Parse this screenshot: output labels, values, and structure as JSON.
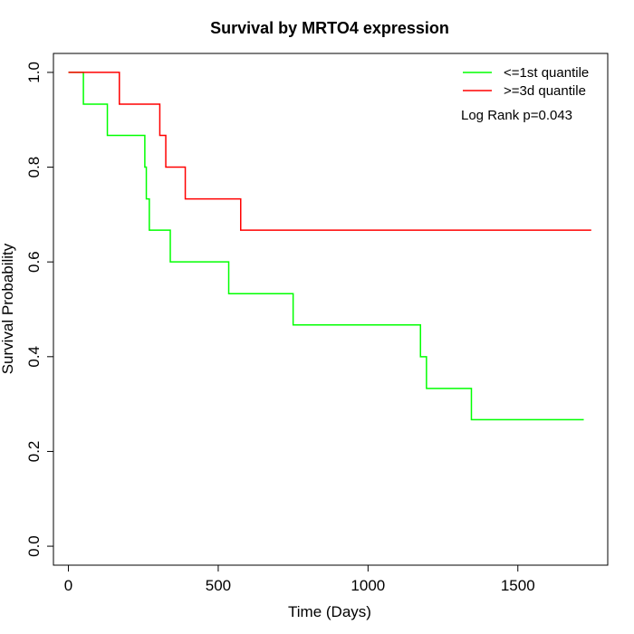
{
  "chart_data": {
    "type": "line",
    "title": "Survival by MRTO4 expression",
    "xlabel": "Time (Days)",
    "ylabel": "Survival Probability",
    "xlim": [
      -50,
      1800
    ],
    "ylim": [
      -0.04,
      1.04
    ],
    "xticks": [
      0,
      500,
      1000,
      1500
    ],
    "yticks": [
      0.0,
      0.2,
      0.4,
      0.6,
      0.8,
      1.0
    ],
    "xtick_labels": [
      "0",
      "500",
      "1000",
      "1500"
    ],
    "ytick_labels": [
      "0.0",
      "0.2",
      "0.4",
      "0.6",
      "0.8",
      "1.0"
    ],
    "grid": false,
    "legend_position": "top-right",
    "annotation": "Log Rank p=0.043",
    "series": [
      {
        "name": "<=1st quantile",
        "color": "#00ff00",
        "step": true,
        "x": [
          0,
          50,
          130,
          255,
          260,
          270,
          340,
          535,
          750,
          1175,
          1195,
          1345,
          1720
        ],
        "y": [
          1.0,
          0.933,
          0.867,
          0.8,
          0.733,
          0.667,
          0.6,
          0.533,
          0.467,
          0.4,
          0.333,
          0.267,
          0.267
        ]
      },
      {
        "name": ">=3d quantile",
        "color": "#ff0000",
        "step": true,
        "x": [
          0,
          170,
          305,
          325,
          390,
          575,
          1745
        ],
        "y": [
          1.0,
          0.933,
          0.867,
          0.8,
          0.733,
          0.667,
          0.667
        ]
      }
    ]
  }
}
